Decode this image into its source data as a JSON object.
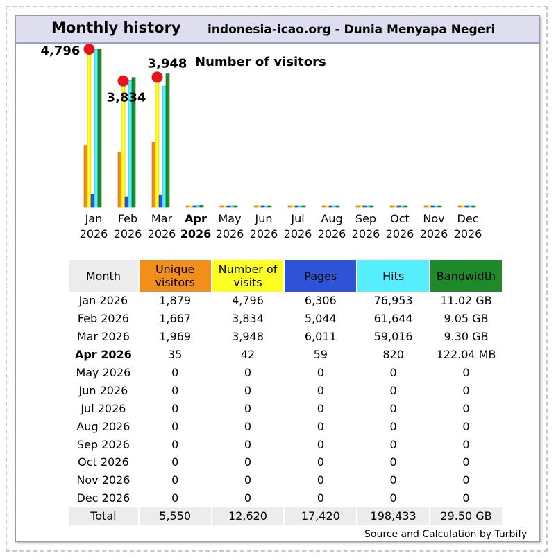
{
  "header": {
    "title": "Monthly history",
    "site": "indonesia-icao.org -  Dunia Menyapa Negeri"
  },
  "chart_data": {
    "type": "bar",
    "categories": [
      "Jan 2026",
      "Feb 2026",
      "Mar 2026",
      "Apr 2026",
      "May 2026",
      "Jun 2026",
      "Jul 2026",
      "Aug 2026",
      "Sep 2026",
      "Oct 2026",
      "Nov 2026",
      "Dec 2026"
    ],
    "month_labels": [
      "Jan",
      "Feb",
      "Mar",
      "Apr",
      "May",
      "Jun",
      "Jul",
      "Aug",
      "Sep",
      "Oct",
      "Nov",
      "Dec"
    ],
    "year_label": "2026",
    "current_month_index": 3,
    "series": [
      {
        "name": "Unique visitors",
        "color": "#f28f1c",
        "values": [
          1879,
          1667,
          1969,
          35,
          0,
          0,
          0,
          0,
          0,
          0,
          0,
          0
        ]
      },
      {
        "name": "Number of visits",
        "color": "#ffff22",
        "values": [
          4796,
          3834,
          3948,
          42,
          0,
          0,
          0,
          0,
          0,
          0,
          0,
          0
        ]
      },
      {
        "name": "Pages",
        "color": "#2f53d6",
        "values": [
          6306,
          5044,
          6011,
          59,
          0,
          0,
          0,
          0,
          0,
          0,
          0,
          0
        ]
      },
      {
        "name": "Hits",
        "color": "#55eeff",
        "values": [
          76953,
          61644,
          59016,
          820,
          0,
          0,
          0,
          0,
          0,
          0,
          0,
          0
        ]
      },
      {
        "name": "Bandwidth",
        "color": "#1e8a2a",
        "values_gb": [
          11.02,
          9.05,
          9.3,
          0.122,
          0,
          0,
          0,
          0,
          0,
          0,
          0,
          0
        ]
      }
    ],
    "annotations": [
      {
        "month": "Jan",
        "value_label": "4,796"
      },
      {
        "month": "Feb",
        "value_label": "3,834"
      },
      {
        "month": "Mar",
        "value_label": "3,948"
      }
    ],
    "annotation_caption": "Number of visitors",
    "marker_color": "#e8141c"
  },
  "table": {
    "headers": {
      "month": "Month",
      "unique": [
        "Unique",
        "visitors"
      ],
      "visits": [
        "Number of",
        "visits"
      ],
      "pages": "Pages",
      "hits": "Hits",
      "bandwidth": "Bandwidth"
    },
    "rows": [
      {
        "month": "Jan 2026",
        "unique": "1,879",
        "visits": "4,796",
        "pages": "6,306",
        "hits": "76,953",
        "bandwidth": "11.02 GB"
      },
      {
        "month": "Feb 2026",
        "unique": "1,667",
        "visits": "3,834",
        "pages": "5,044",
        "hits": "61,644",
        "bandwidth": "9.05 GB"
      },
      {
        "month": "Mar 2026",
        "unique": "1,969",
        "visits": "3,948",
        "pages": "6,011",
        "hits": "59,016",
        "bandwidth": "9.30 GB"
      },
      {
        "month": "Apr 2026",
        "unique": "35",
        "visits": "42",
        "pages": "59",
        "hits": "820",
        "bandwidth": "122.04 MB",
        "current": true
      },
      {
        "month": "May 2026",
        "unique": "0",
        "visits": "0",
        "pages": "0",
        "hits": "0",
        "bandwidth": "0"
      },
      {
        "month": "Jun 2026",
        "unique": "0",
        "visits": "0",
        "pages": "0",
        "hits": "0",
        "bandwidth": "0"
      },
      {
        "month": "Jul 2026",
        "unique": "0",
        "visits": "0",
        "pages": "0",
        "hits": "0",
        "bandwidth": "0"
      },
      {
        "month": "Aug 2026",
        "unique": "0",
        "visits": "0",
        "pages": "0",
        "hits": "0",
        "bandwidth": "0"
      },
      {
        "month": "Sep 2026",
        "unique": "0",
        "visits": "0",
        "pages": "0",
        "hits": "0",
        "bandwidth": "0"
      },
      {
        "month": "Oct 2026",
        "unique": "0",
        "visits": "0",
        "pages": "0",
        "hits": "0",
        "bandwidth": "0"
      },
      {
        "month": "Nov 2026",
        "unique": "0",
        "visits": "0",
        "pages": "0",
        "hits": "0",
        "bandwidth": "0"
      },
      {
        "month": "Dec 2026",
        "unique": "0",
        "visits": "0",
        "pages": "0",
        "hits": "0",
        "bandwidth": "0"
      }
    ],
    "total": {
      "month": "Total",
      "unique": "5,550",
      "visits": "12,620",
      "pages": "17,420",
      "hits": "198,433",
      "bandwidth": "29.50 GB"
    }
  },
  "footer": "Source and Calculation by Turbify"
}
